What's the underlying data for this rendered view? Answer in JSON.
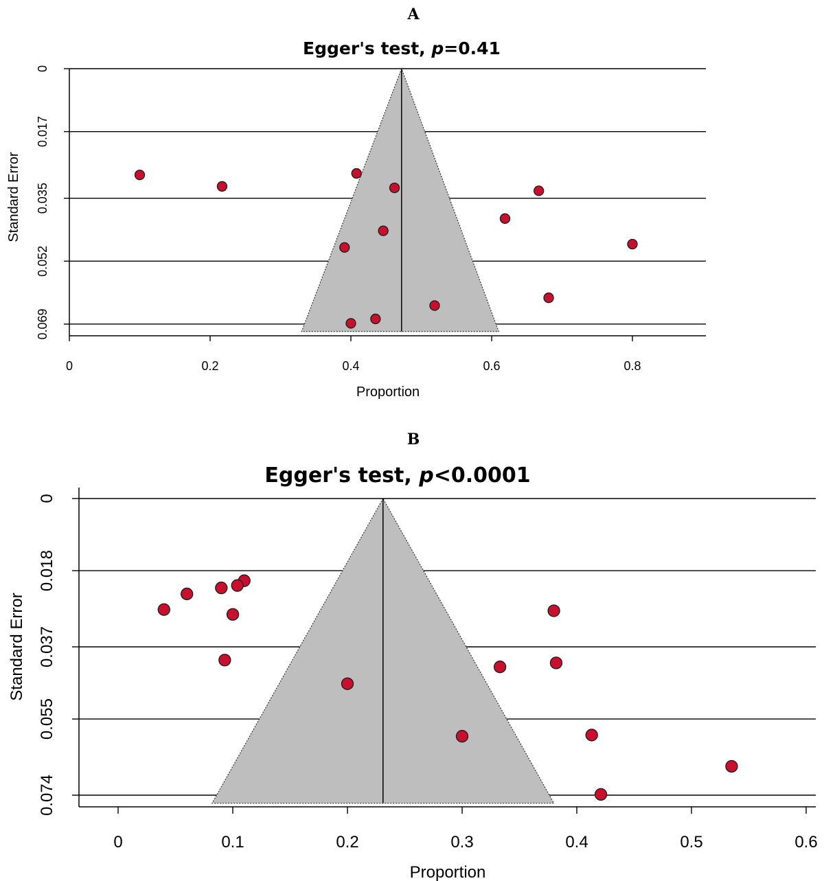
{
  "colors": {
    "point_fill": "#C8102E",
    "funnel_fill": "#BEBEBE",
    "line": "#000000"
  },
  "chart_data": [
    {
      "panel_label": "A",
      "type": "scatter",
      "subtype": "funnel-plot",
      "title_prefix": "Egger's test, ",
      "title_italic": "p",
      "title_suffix": "=0.41",
      "xlabel": "Proportion",
      "ylabel": "Standard Error",
      "xlim": [
        0,
        0.9
      ],
      "ylim": [
        0.069,
        0
      ],
      "y_reversed": true,
      "x_ticks": [
        "0",
        "0.2",
        "0.4",
        "0.6",
        "0.8"
      ],
      "y_ticks": [
        "0",
        "0.017",
        "0.035",
        "0.052",
        "0.069"
      ],
      "y_tick_values": [
        0,
        0.017,
        0.035,
        0.052,
        0.069
      ],
      "grid": "horizontal",
      "pooled_estimate": 0.472,
      "funnel_base_at_se": 0.071,
      "funnel_base_x": [
        0.33,
        0.61
      ],
      "points": [
        {
          "x": 0.1,
          "y": 0.0287
        },
        {
          "x": 0.217,
          "y": 0.0318
        },
        {
          "x": 0.408,
          "y": 0.0283
        },
        {
          "x": 0.462,
          "y": 0.0322
        },
        {
          "x": 0.667,
          "y": 0.033
        },
        {
          "x": 0.619,
          "y": 0.0405
        },
        {
          "x": 0.446,
          "y": 0.0438
        },
        {
          "x": 0.391,
          "y": 0.0483
        },
        {
          "x": 0.8,
          "y": 0.0474
        },
        {
          "x": 0.681,
          "y": 0.0619
        },
        {
          "x": 0.519,
          "y": 0.064
        },
        {
          "x": 0.435,
          "y": 0.0676
        },
        {
          "x": 0.4,
          "y": 0.0688
        }
      ]
    },
    {
      "panel_label": "B",
      "type": "scatter",
      "subtype": "funnel-plot",
      "title_prefix": "Egger's test, ",
      "title_italic": "p",
      "title_suffix": "<0.0001",
      "xlabel": "Proportion",
      "ylabel": "Standard Error",
      "xlim": [
        0,
        0.6
      ],
      "ylim": [
        0.074,
        0
      ],
      "y_reversed": true,
      "x_ticks": [
        "0",
        "0.1",
        "0.2",
        "0.3",
        "0.4",
        "0.5",
        "0.6"
      ],
      "y_ticks": [
        "0",
        "0.018",
        "0.037",
        "0.055",
        "0.074"
      ],
      "y_tick_values": [
        0,
        0.018,
        0.037,
        0.055,
        0.074
      ],
      "grid": "horizontal",
      "pooled_estimate": 0.231,
      "funnel_base_at_se": 0.076,
      "funnel_base_x": [
        0.082,
        0.38
      ],
      "points": [
        {
          "x": 0.11,
          "y": 0.0205
        },
        {
          "x": 0.104,
          "y": 0.0217
        },
        {
          "x": 0.09,
          "y": 0.0223
        },
        {
          "x": 0.06,
          "y": 0.0238
        },
        {
          "x": 0.04,
          "y": 0.0277
        },
        {
          "x": 0.1,
          "y": 0.0289
        },
        {
          "x": 0.38,
          "y": 0.028
        },
        {
          "x": 0.093,
          "y": 0.0403
        },
        {
          "x": 0.382,
          "y": 0.041
        },
        {
          "x": 0.333,
          "y": 0.042
        },
        {
          "x": 0.2,
          "y": 0.0462
        },
        {
          "x": 0.3,
          "y": 0.0593
        },
        {
          "x": 0.413,
          "y": 0.059
        },
        {
          "x": 0.535,
          "y": 0.0668
        },
        {
          "x": 0.421,
          "y": 0.0738
        }
      ]
    }
  ]
}
